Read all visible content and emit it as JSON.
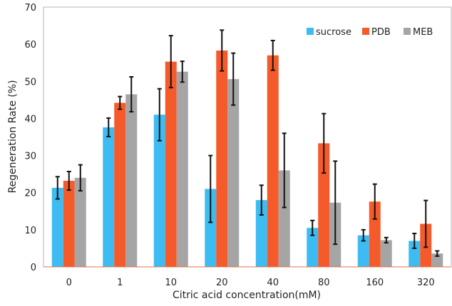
{
  "chart_data": {
    "type": "bar",
    "title": "",
    "xlabel": "Citric acid concentration(mM)",
    "ylabel": "Regeneration Rate (%)",
    "ylim": [
      0,
      70
    ],
    "yticks": [
      0,
      10,
      20,
      30,
      40,
      50,
      60,
      70
    ],
    "grid": false,
    "legend_position": "top-right",
    "categories": [
      "0",
      "1",
      "10",
      "20",
      "40",
      "80",
      "160",
      "320"
    ],
    "series": [
      {
        "name": "sucrose",
        "color": "#3dbcf2",
        "values": [
          21.3,
          37.6,
          41.0,
          21.0,
          18.0,
          10.5,
          8.5,
          7.0
        ],
        "errors": [
          3.0,
          2.5,
          7.0,
          9.0,
          4.0,
          2.0,
          1.5,
          2.0
        ]
      },
      {
        "name": "PDB",
        "color": "#f45a2a",
        "values": [
          23.2,
          44.2,
          55.3,
          58.3,
          57.0,
          33.3,
          17.6,
          11.6
        ],
        "errors": [
          2.5,
          1.7,
          7.0,
          5.5,
          4.0,
          8.0,
          4.7,
          6.3
        ]
      },
      {
        "name": "MEB",
        "color": "#a5a5a5",
        "values": [
          24.0,
          46.5,
          52.6,
          50.6,
          26.0,
          17.3,
          7.2,
          3.6
        ],
        "errors": [
          3.5,
          4.7,
          2.8,
          7.0,
          10.0,
          11.2,
          0.7,
          0.7
        ]
      }
    ]
  }
}
